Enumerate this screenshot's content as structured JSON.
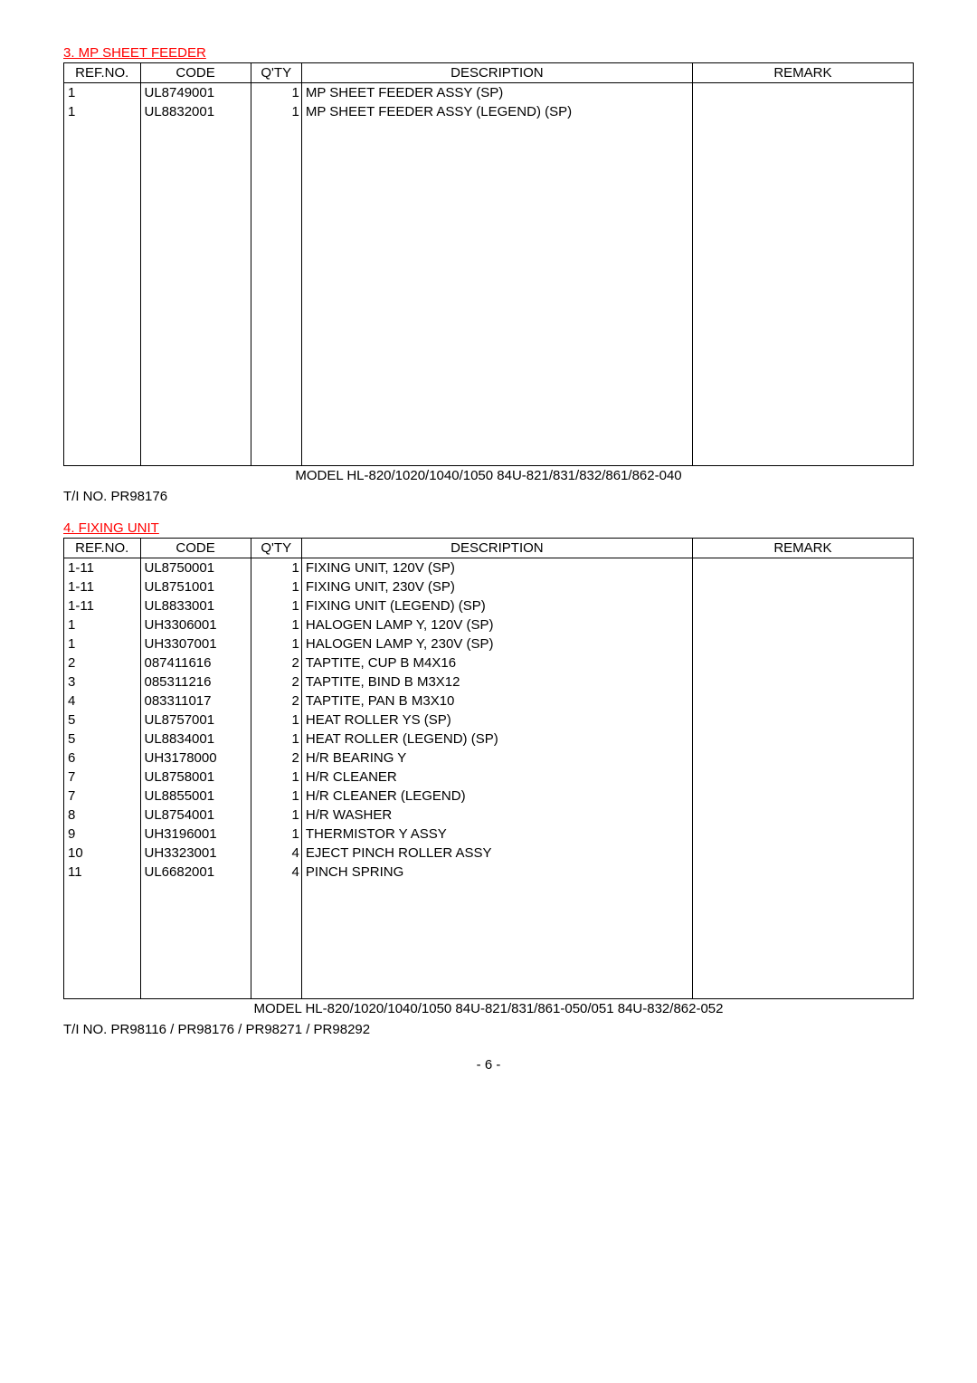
{
  "section1": {
    "title": "3. MP SHEET FEEDER",
    "headers": {
      "ref": "REF.NO.",
      "code": "CODE",
      "qty": "Q'TY",
      "desc": "DESCRIPTION",
      "rem": "REMARK"
    },
    "rows": [
      {
        "ref": "1",
        "code": "UL8749001",
        "qty": "1",
        "desc": "MP SHEET FEEDER ASSY (SP)",
        "rem": ""
      },
      {
        "ref": "1",
        "code": "UL8832001",
        "qty": "1",
        "desc": "MP SHEET FEEDER ASSY (LEGEND) (SP)",
        "rem": ""
      }
    ],
    "model": "MODEL HL-820/1020/1040/1050 84U-821/831/832/861/862-040",
    "ti": "T/I NO. PR98176"
  },
  "section2": {
    "title": "4. FIXING UNIT",
    "headers": {
      "ref": "REF.NO.",
      "code": "CODE",
      "qty": "Q'TY",
      "desc": "DESCRIPTION",
      "rem": "REMARK"
    },
    "rows": [
      {
        "ref": "1-11",
        "code": "UL8750001",
        "qty": "1",
        "desc": "FIXING UNIT, 120V (SP)",
        "rem": ""
      },
      {
        "ref": "1-11",
        "code": "UL8751001",
        "qty": "1",
        "desc": "FIXING UNIT, 230V (SP)",
        "rem": ""
      },
      {
        "ref": "1-11",
        "code": "UL8833001",
        "qty": "1",
        "desc": "FIXING UNIT (LEGEND) (SP)",
        "rem": ""
      },
      {
        "ref": "1",
        "code": "UH3306001",
        "qty": "1",
        "desc": "HALOGEN LAMP Y, 120V (SP)",
        "rem": ""
      },
      {
        "ref": "1",
        "code": "UH3307001",
        "qty": "1",
        "desc": "HALOGEN LAMP Y, 230V (SP)",
        "rem": ""
      },
      {
        "ref": "2",
        "code": "087411616",
        "qty": "2",
        "desc": "TAPTITE, CUP B M4X16",
        "rem": ""
      },
      {
        "ref": "3",
        "code": "085311216",
        "qty": "2",
        "desc": "TAPTITE, BIND B M3X12",
        "rem": ""
      },
      {
        "ref": "4",
        "code": "083311017",
        "qty": "2",
        "desc": "TAPTITE, PAN B M3X10",
        "rem": ""
      },
      {
        "ref": "5",
        "code": "UL8757001",
        "qty": "1",
        "desc": "HEAT ROLLER YS (SP)",
        "rem": ""
      },
      {
        "ref": "5",
        "code": "UL8834001",
        "qty": "1",
        "desc": "HEAT ROLLER (LEGEND) (SP)",
        "rem": ""
      },
      {
        "ref": "6",
        "code": "UH3178000",
        "qty": "2",
        "desc": "H/R BEARING Y",
        "rem": ""
      },
      {
        "ref": "7",
        "code": "UL8758001",
        "qty": "1",
        "desc": "H/R CLEANER",
        "rem": ""
      },
      {
        "ref": "7",
        "code": "UL8855001",
        "qty": "1",
        "desc": "H/R CLEANER (LEGEND)",
        "rem": ""
      },
      {
        "ref": "8",
        "code": "UL8754001",
        "qty": "1",
        "desc": "H/R WASHER",
        "rem": ""
      },
      {
        "ref": "9",
        "code": "UH3196001",
        "qty": "1",
        "desc": "THERMISTOR Y ASSY",
        "rem": ""
      },
      {
        "ref": "10",
        "code": "UH3323001",
        "qty": "4",
        "desc": "EJECT PINCH ROLLER ASSY",
        "rem": ""
      },
      {
        "ref": "11",
        "code": "UL6682001",
        "qty": "4",
        "desc": "PINCH SPRING",
        "rem": ""
      }
    ],
    "model": "MODEL HL-820/1020/1040/1050 84U-821/831/861-050/051 84U-832/862-052",
    "ti": "T/I NO. PR98116 / PR98176 / PR98271 / PR98292"
  },
  "pagefoot": "- 6 -",
  "colors": {
    "title": "#ff0000",
    "text": "#000000",
    "border": "#000000",
    "background": "#ffffff"
  }
}
